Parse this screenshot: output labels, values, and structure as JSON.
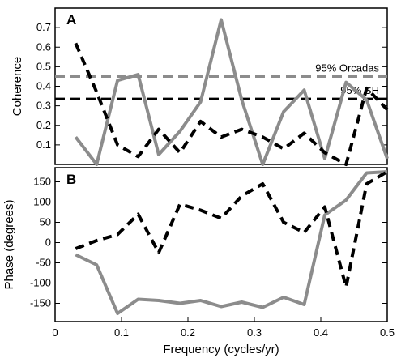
{
  "chart_data": [
    {
      "panel_label": "A",
      "type": "line",
      "ylabel": "Coherence",
      "xlim": [
        0,
        0.5
      ],
      "ylim": [
        0,
        0.8
      ],
      "xticks": [],
      "yticks": [
        0.1,
        0.2,
        0.3,
        0.4,
        0.5,
        0.6,
        0.7
      ],
      "ytick_labels": [
        "0.1",
        "0.2",
        "0.3",
        "0.4",
        "0.5",
        "0.6",
        "0.7"
      ],
      "series": [
        {
          "style": "solid",
          "color": "#8c8c8c",
          "x": [
            0.031,
            0.0625,
            0.094,
            0.125,
            0.156,
            0.188,
            0.219,
            0.25,
            0.281,
            0.3125,
            0.344,
            0.375,
            0.406,
            0.438,
            0.469,
            0.5
          ],
          "y": [
            0.14,
            0.0,
            0.43,
            0.46,
            0.05,
            0.17,
            0.32,
            0.74,
            0.33,
            0.0,
            0.27,
            0.38,
            0.03,
            0.42,
            0.33,
            0.03
          ]
        },
        {
          "style": "dashed",
          "color": "#000000",
          "x": [
            0.031,
            0.0625,
            0.094,
            0.125,
            0.156,
            0.188,
            0.219,
            0.25,
            0.281,
            0.3125,
            0.344,
            0.375,
            0.406,
            0.438,
            0.469,
            0.5
          ],
          "y": [
            0.62,
            0.37,
            0.1,
            0.04,
            0.18,
            0.06,
            0.22,
            0.14,
            0.18,
            0.14,
            0.08,
            0.16,
            0.06,
            0.0,
            0.39,
            0.28
          ]
        }
      ],
      "reference_lines": [
        {
          "label": "95% Orcadas",
          "y": 0.45,
          "style": "dashed",
          "color": "#8c8c8c"
        },
        {
          "label": "95% SH",
          "y": 0.335,
          "style": "dashed",
          "color": "#000000"
        }
      ]
    },
    {
      "panel_label": "B",
      "type": "line",
      "xlabel": "Frequency (cycles/yr)",
      "ylabel": "Phase (degrees)",
      "xlim": [
        0,
        0.5
      ],
      "ylim": [
        -195,
        185
      ],
      "xticks": [
        0,
        0.1,
        0.2,
        0.3,
        0.4,
        0.5
      ],
      "xtick_labels": [
        "0",
        "0.1",
        "0.2",
        "0.3",
        "0.4",
        "0.5"
      ],
      "yticks": [
        -150,
        -100,
        -50,
        0,
        50,
        100,
        150
      ],
      "ytick_labels": [
        "-150",
        "-100",
        "-50",
        "0",
        "50",
        "100",
        "150"
      ],
      "series": [
        {
          "style": "solid",
          "color": "#8c8c8c",
          "x": [
            0.031,
            0.0625,
            0.094,
            0.125,
            0.156,
            0.188,
            0.219,
            0.25,
            0.281,
            0.3125,
            0.344,
            0.375,
            0.406,
            0.438,
            0.469,
            0.5
          ],
          "y": [
            -30,
            -55,
            -175,
            -140,
            -143,
            -150,
            -143,
            -158,
            -147,
            -160,
            -135,
            -153,
            68,
            105,
            172,
            175
          ]
        },
        {
          "style": "dashed",
          "color": "#000000",
          "x": [
            0.031,
            0.0625,
            0.094,
            0.125,
            0.156,
            0.188,
            0.219,
            0.25,
            0.281,
            0.3125,
            0.344,
            0.375,
            0.406,
            0.438,
            0.469,
            0.5
          ],
          "y": [
            -15,
            5,
            20,
            70,
            -25,
            95,
            80,
            60,
            115,
            145,
            50,
            25,
            88,
            -110,
            145,
            175
          ]
        }
      ]
    }
  ]
}
